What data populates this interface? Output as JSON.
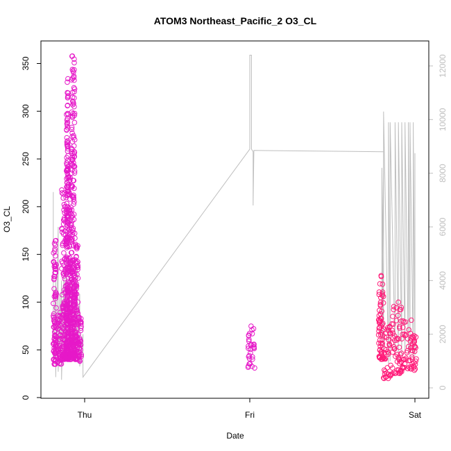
{
  "chart_data": {
    "type": "scatter",
    "title": "ATOM3 Northeast_Pacific_2 O3_CL",
    "xlabel": "Date",
    "ylabel": "O3_CL",
    "x_ticks": [
      "Thu",
      "Fri",
      "Sat"
    ],
    "x_tick_values": [
      0,
      1,
      2
    ],
    "ylim": [
      0,
      360
    ],
    "y_ticks": [
      0,
      50,
      100,
      150,
      200,
      250,
      300,
      350
    ],
    "y2lim": [
      0,
      12000
    ],
    "y2_ticks": [
      0,
      2000,
      4000,
      6000,
      8000,
      10000,
      12000
    ],
    "grid": false,
    "colors": {
      "points_early": "#e619c8",
      "points_late": "#ff1a78",
      "altitude_line": "#bebebe"
    },
    "series": [
      {
        "axis": "left",
        "marker": "open-circle",
        "clusters": [
          {
            "x": [
              -0.19,
              -0.17
            ],
            "y": [
              35,
              165
            ]
          },
          {
            "x": [
              -0.17,
              -0.14
            ],
            "y": [
              35,
              90
            ]
          },
          {
            "x": [
              -0.14,
              -0.11
            ],
            "y": [
              40,
              220
            ]
          },
          {
            "x": [
              -0.11,
              -0.1
            ],
            "y": [
              40,
              335
            ]
          },
          {
            "x": [
              -0.1,
              -0.08
            ],
            "y": [
              40,
              240
            ]
          },
          {
            "x": [
              -0.08,
              -0.06
            ],
            "y": [
              45,
              360
            ]
          },
          {
            "x": [
              -0.06,
              -0.04
            ],
            "y": [
              40,
              170
            ]
          },
          {
            "x": [
              -0.04,
              -0.02
            ],
            "y": [
              38,
              95
            ]
          },
          {
            "x": [
              0.99,
              1.03
            ],
            "y": [
              30,
              75
            ]
          },
          {
            "x": [
              1.78,
              1.81
            ],
            "y": [
              40,
              128
            ]
          },
          {
            "x": [
              1.81,
              1.86
            ],
            "y": [
              20,
              75
            ]
          },
          {
            "x": [
              1.86,
              1.92
            ],
            "y": [
              25,
              100
            ]
          },
          {
            "x": [
              1.92,
              1.98
            ],
            "y": [
              30,
              82
            ]
          },
          {
            "x": [
              1.98,
              2.01
            ],
            "y": [
              28,
              65
            ]
          }
        ]
      },
      {
        "axis": "right",
        "type": "line",
        "x": [
          -0.19,
          -0.19,
          -0.175,
          -0.175,
          -0.16,
          -0.16,
          -0.15,
          -0.15,
          -0.14,
          -0.14,
          -0.125,
          -0.125,
          -0.11,
          -0.11,
          -0.09,
          -0.09,
          -0.075,
          -0.075,
          -0.06,
          -0.06,
          -0.045,
          -0.045,
          -0.03,
          -0.03,
          -0.01,
          -0.01,
          1.0,
          1.0,
          1.01,
          1.01,
          1.02,
          1.02,
          1.025,
          1.81,
          1.8,
          1.8,
          1.81,
          1.81,
          1.84,
          1.84,
          1.85,
          1.85,
          1.88,
          1.88,
          1.9,
          1.9,
          1.92,
          1.92,
          1.94,
          1.94,
          1.96,
          1.96,
          1.97,
          1.97,
          1.99,
          1.99,
          2.0,
          2.0
        ],
        "y": [
          7300,
          1000,
          4000,
          400,
          6000,
          600,
          3500,
          1400,
          4000,
          300,
          4500,
          1200,
          5000,
          1000,
          4200,
          1500,
          4800,
          1200,
          3800,
          1000,
          4500,
          1200,
          3500,
          800,
          2000,
          400,
          8900,
          12400,
          12400,
          8900,
          8800,
          6800,
          8850,
          8800,
          1800,
          8200,
          1000,
          10300,
          900,
          9900,
          1000,
          9900,
          1200,
          9900,
          1000,
          9900,
          1200,
          9900,
          1300,
          9900,
          1300,
          9900,
          1100,
          9900,
          1000,
          9900,
          1200,
          8750
        ]
      }
    ]
  }
}
